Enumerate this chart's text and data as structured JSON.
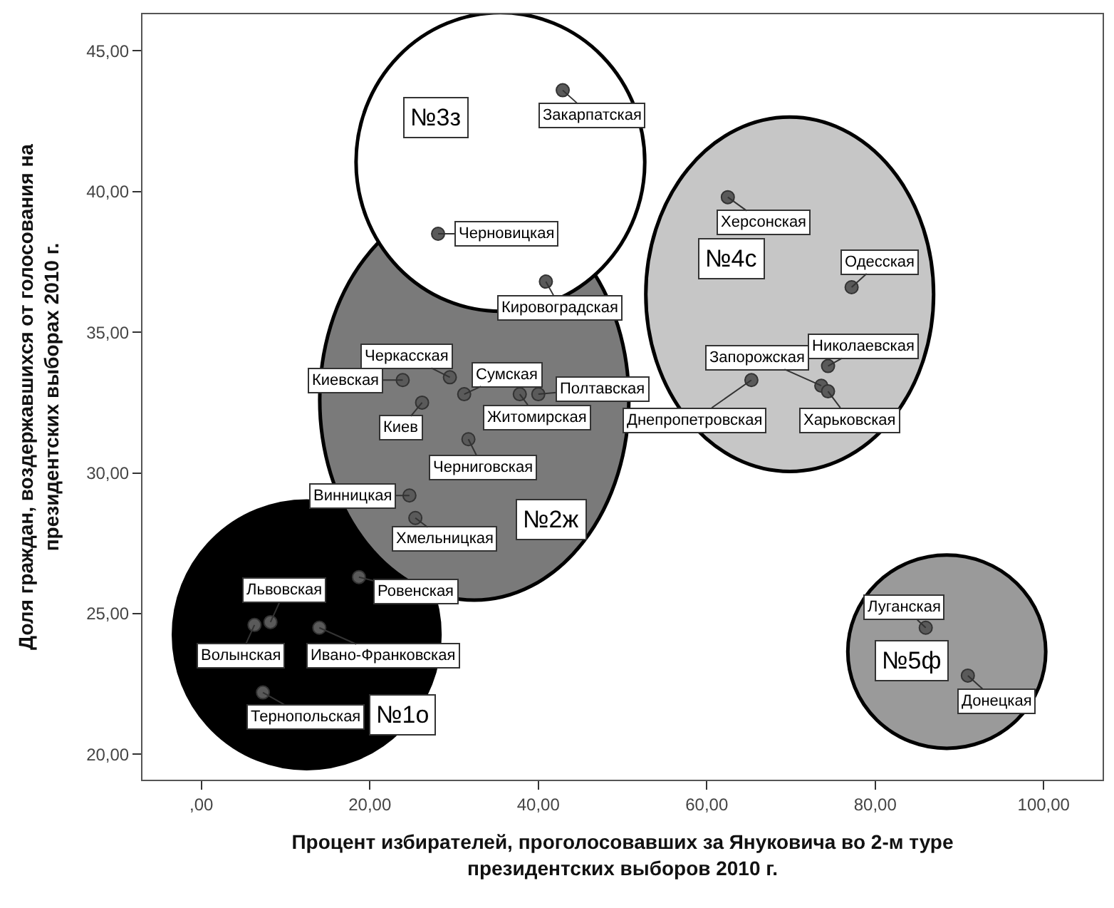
{
  "chart_data": {
    "type": "scatter",
    "xlabel": "Процент избирателей, проголосовавших за Януковича во 2-м туре\nпрезидентских выборов 2010 г.",
    "ylabel": "Доля граждан, воздержавшихся от голосования на\nпрезидентских выборах 2010 г.",
    "xlim": [
      -7,
      107
    ],
    "ylim": [
      19.1,
      46.3
    ],
    "xticks": [
      {
        "value": 0,
        "label": ",00"
      },
      {
        "value": 20,
        "label": "20,00"
      },
      {
        "value": 40,
        "label": "40,00"
      },
      {
        "value": 60,
        "label": "60,00"
      },
      {
        "value": 80,
        "label": "80,00"
      },
      {
        "value": 100,
        "label": "100,00"
      }
    ],
    "yticks": [
      {
        "value": 20,
        "label": "20,00"
      },
      {
        "value": 25,
        "label": "25,00"
      },
      {
        "value": 30,
        "label": "30,00"
      },
      {
        "value": 35,
        "label": "35,00"
      },
      {
        "value": 40,
        "label": "40,00"
      },
      {
        "value": 45,
        "label": "45,00"
      }
    ],
    "grid": false,
    "marker": "circle",
    "series": [
      {
        "color": "#5a5a5a",
        "x": [
          18.7,
          8.2,
          6.3,
          14.0,
          7.3
        ],
        "values": [
          26.3,
          24.7,
          24.6,
          24.5,
          22.2
        ]
      },
      {
        "color": "#5a5a5a",
        "x": [
          40.9,
          29.5,
          23.9,
          31.2,
          37.8,
          40.0,
          26.2,
          31.7,
          24.7,
          25.4
        ],
        "values": [
          36.8,
          33.4,
          33.3,
          32.8,
          32.8,
          32.8,
          32.5,
          31.2,
          29.2,
          28.4
        ]
      },
      {
        "color": "#5a5a5a",
        "x": [
          42.9,
          28.1
        ],
        "values": [
          43.6,
          38.5
        ]
      },
      {
        "color": "#5a5a5a",
        "x": [
          62.5,
          77.2,
          74.4,
          65.3,
          73.6,
          74.4
        ],
        "values": [
          39.8,
          36.6,
          33.8,
          33.3,
          33.1,
          32.9
        ]
      },
      {
        "color": "#5a5a5a",
        "x": [
          86.0,
          91.0
        ],
        "values": [
          24.5,
          22.8
        ]
      }
    ],
    "annotations": [
      {
        "text": "Ровенская",
        "x": 18.7,
        "y": 26.3
      },
      {
        "text": "Львовская",
        "x": 8.2,
        "y": 24.7
      },
      {
        "text": "Волынская",
        "x": 6.3,
        "y": 24.6
      },
      {
        "text": "Ивано-Франковская",
        "x": 14.0,
        "y": 24.5
      },
      {
        "text": "Тернопольская",
        "x": 7.3,
        "y": 22.2
      },
      {
        "text": "Кировоградская",
        "x": 40.9,
        "y": 36.8
      },
      {
        "text": "Черкасская",
        "x": 29.5,
        "y": 33.4
      },
      {
        "text": "Киевская",
        "x": 23.9,
        "y": 33.3
      },
      {
        "text": "Сумская",
        "x": 31.2,
        "y": 32.8
      },
      {
        "text": "Житомирская",
        "x": 37.8,
        "y": 32.8
      },
      {
        "text": "Полтавская",
        "x": 40.0,
        "y": 32.8
      },
      {
        "text": "Киев",
        "x": 26.2,
        "y": 32.5
      },
      {
        "text": "Черниговская",
        "x": 31.7,
        "y": 31.2
      },
      {
        "text": "Винницкая",
        "x": 24.7,
        "y": 29.2
      },
      {
        "text": "Хмельницкая",
        "x": 25.4,
        "y": 28.4
      },
      {
        "text": "Закарпатская",
        "x": 42.9,
        "y": 43.6
      },
      {
        "text": "Черновицкая",
        "x": 28.1,
        "y": 38.5
      },
      {
        "text": "Херсонская",
        "x": 62.5,
        "y": 39.8
      },
      {
        "text": "Одесская",
        "x": 77.2,
        "y": 36.6
      },
      {
        "text": "Николаевская",
        "x": 74.4,
        "y": 33.8
      },
      {
        "text": "Днепропетровская",
        "x": 65.3,
        "y": 33.3
      },
      {
        "text": "Запорожская",
        "x": 73.6,
        "y": 33.1
      },
      {
        "text": "Харьковская",
        "x": 74.4,
        "y": 32.9
      },
      {
        "text": "Луганская",
        "x": 86.0,
        "y": 24.5
      },
      {
        "text": "Донецкая",
        "x": 91.0,
        "y": 22.8
      },
      "№1о",
      "№2ж",
      "№3з",
      "№4с",
      "№5ф"
    ]
  }
}
